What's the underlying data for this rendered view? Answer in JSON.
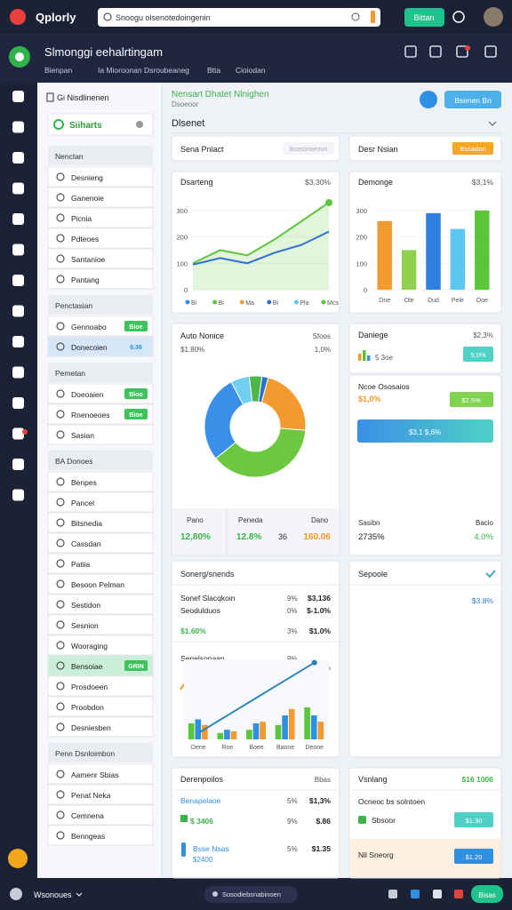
{
  "topbar": {
    "brand": "Qplorly",
    "search": "Snoogu olsenotedoingenin",
    "button": "Bittan"
  },
  "header": {
    "title": "Slmonggi eehalrtingam",
    "nav": [
      "Bienpan",
      "Ia Mioroonan",
      "Dsroubeaneg",
      "Btta",
      "Cioiodan"
    ]
  },
  "sidebar": {
    "title": "Gi Nisdlinenen",
    "active": "Siiharts",
    "sections": [
      {
        "label": "Nenctan",
        "items": [
          {
            "text": "Desnieng"
          },
          {
            "text": "Ganenoie"
          },
          {
            "text": "Picnia"
          },
          {
            "text": "Pdteoes"
          },
          {
            "text": "Santanioe"
          },
          {
            "text": "Pantang"
          }
        ]
      },
      {
        "label": "Penctasian",
        "items": [
          {
            "text": "Gennoabo",
            "badge": "Bioe"
          },
          {
            "text": "Donecoien",
            "badge": "6.36"
          }
        ]
      },
      {
        "label": "Pemetan",
        "items": [
          {
            "text": "Doeoaien",
            "badge": "Bioo"
          },
          {
            "text": "Rnenoeoes",
            "badge": "Bioe"
          },
          {
            "text": "Sasian"
          }
        ]
      },
      {
        "label": "BA Donoes",
        "items": [
          {
            "text": "Benpes"
          },
          {
            "text": "Pancel"
          },
          {
            "text": "Bitsnedia"
          },
          {
            "text": "Cassdan"
          },
          {
            "text": "Patiia"
          },
          {
            "text": "Besoon Pelman"
          },
          {
            "text": "Sestidon"
          },
          {
            "text": "Sesnion"
          },
          {
            "text": "Wooraging"
          },
          {
            "text": "Bensoiae",
            "badge": "GRIN"
          },
          {
            "text": "Prosdoeen"
          },
          {
            "text": "Proobdon"
          },
          {
            "text": "Desniesben"
          }
        ]
      },
      {
        "label": "Penn Dsnloimbon",
        "items": [
          {
            "text": "Aamenr Sbias"
          },
          {
            "text": "Penat Neka"
          },
          {
            "text": "Cemnena"
          },
          {
            "text": "Benngeas"
          }
        ]
      }
    ]
  },
  "main": {
    "title": "Nensart Dhatet Nlnighen",
    "subtitle": "Dsoeoor",
    "button": "Bsenen Bn",
    "section": "Dlsenet",
    "filter": {
      "label": "Sena Pniact",
      "placeholder": "Bsosonoeoon"
    },
    "status": {
      "label": "Desr Nsian",
      "badge": "Bssadon"
    },
    "line_chart": {
      "title": "Dsarteng",
      "value": "$3,30%",
      "ylim": [
        0,
        350
      ],
      "yticks": [
        0,
        100,
        200,
        300
      ],
      "categories": [
        "Bi",
        "Bi",
        "Ma",
        "Bi",
        "Pla",
        "Mcs"
      ],
      "series": [
        {
          "color": "#5ac73a",
          "values": [
            100,
            150,
            130,
            190,
            260,
            330
          ]
        },
        {
          "color": "#2f6fd6",
          "values": [
            95,
            120,
            100,
            140,
            170,
            220
          ]
        }
      ]
    },
    "bar_chart": {
      "title": "Demonge",
      "value": "$3,1%",
      "ylim": [
        0,
        350
      ],
      "yticks": [
        0,
        100,
        200,
        300
      ],
      "categories": [
        "Dne",
        "Ole",
        "Dud",
        "Pele",
        "Ooe"
      ],
      "values": [
        260,
        150,
        290,
        230,
        300
      ],
      "colors": [
        "#f29a2e",
        "#8fd14f",
        "#2f7fe0",
        "#5bc6f0",
        "#5ac73a"
      ]
    },
    "donut": {
      "title": "Auto Nonice",
      "right": "Sfoos",
      "subtitle": "$1,80%",
      "subright": "1,0%",
      "values": [
        22,
        38,
        28,
        6,
        4,
        2
      ],
      "colors": [
        "#f29a2e",
        "#6cc83e",
        "#3a8fe6",
        "#6fd0f0",
        "#4db848",
        "#2b6fd0"
      ],
      "stats": [
        {
          "label": "Pano",
          "value": "12,80%"
        },
        {
          "label": "Peneda",
          "value": "12.8%",
          "extra": "36"
        },
        {
          "label": "Dano",
          "value": "160.06"
        }
      ]
    },
    "kpi": {
      "title": "Daniege",
      "value": "$2,3%",
      "note": "5 3oe",
      "badge": "5,0%"
    },
    "progress": {
      "title": "Ncoe Ososaios",
      "value": "$1,0%",
      "badge": "$2.5%",
      "bar": "$3,1 $,6%",
      "left_label": "Sasibn",
      "left_value": "2735%",
      "right_label": "Bacio",
      "right_value": "4.0%"
    },
    "trends": {
      "title": "Sonerg/snends",
      "rows": [
        [
          "Sonef Slacqkoin",
          "9%",
          "$3,136"
        ],
        [
          "Seodulduos",
          "0%",
          "$-1.0%"
        ],
        [
          "$1.60%",
          "3%",
          "$1.0%"
        ]
      ],
      "chart": {
        "title": "Senelsonaan",
        "pct": "9%",
        "value": "$1,1 30%",
        "note": "5%",
        "ylim": [
          0,
          100
        ],
        "categories": [
          "Dene",
          "Roe",
          "Boee",
          "Baone",
          "Deone"
        ],
        "line": [
          8,
          30,
          52,
          74,
          96
        ],
        "bars": [
          {
            "color": "#5ac73a",
            "values": [
              20,
              8,
              12,
              18,
              40
            ]
          },
          {
            "color": "#2f8fe0",
            "values": [
              25,
              12,
              20,
              30,
              30
            ]
          },
          {
            "color": "#f29a2e",
            "values": [
              18,
              10,
              22,
              38,
              22
            ]
          }
        ]
      }
    },
    "side": {
      "title": "Sepoole",
      "value": "$3.8%"
    },
    "list": {
      "title": "Derenpoilos",
      "right": "Bbas",
      "rows": [
        [
          "Benapelaoe",
          "5%",
          "$1,3%"
        ],
        [
          "$ 3406",
          "9%",
          "$.86"
        ],
        [
          "Bsse Nsas",
          "5%",
          "$1.35"
        ]
      ],
      "note": "$2400"
    },
    "summary": {
      "title": "Vsnlang",
      "value": "$16 1006",
      "subtitle": "Ocneoc bs solntoen",
      "items": [
        {
          "label": "Sbsoor",
          "badge": "$1.30"
        },
        {
          "label": "Nil Sneorg",
          "badge": "$1.20"
        }
      ]
    }
  },
  "bottombar": {
    "user": "Wsonoues",
    "status": "Sosodiebsnabinoen",
    "button": "Bisas"
  }
}
